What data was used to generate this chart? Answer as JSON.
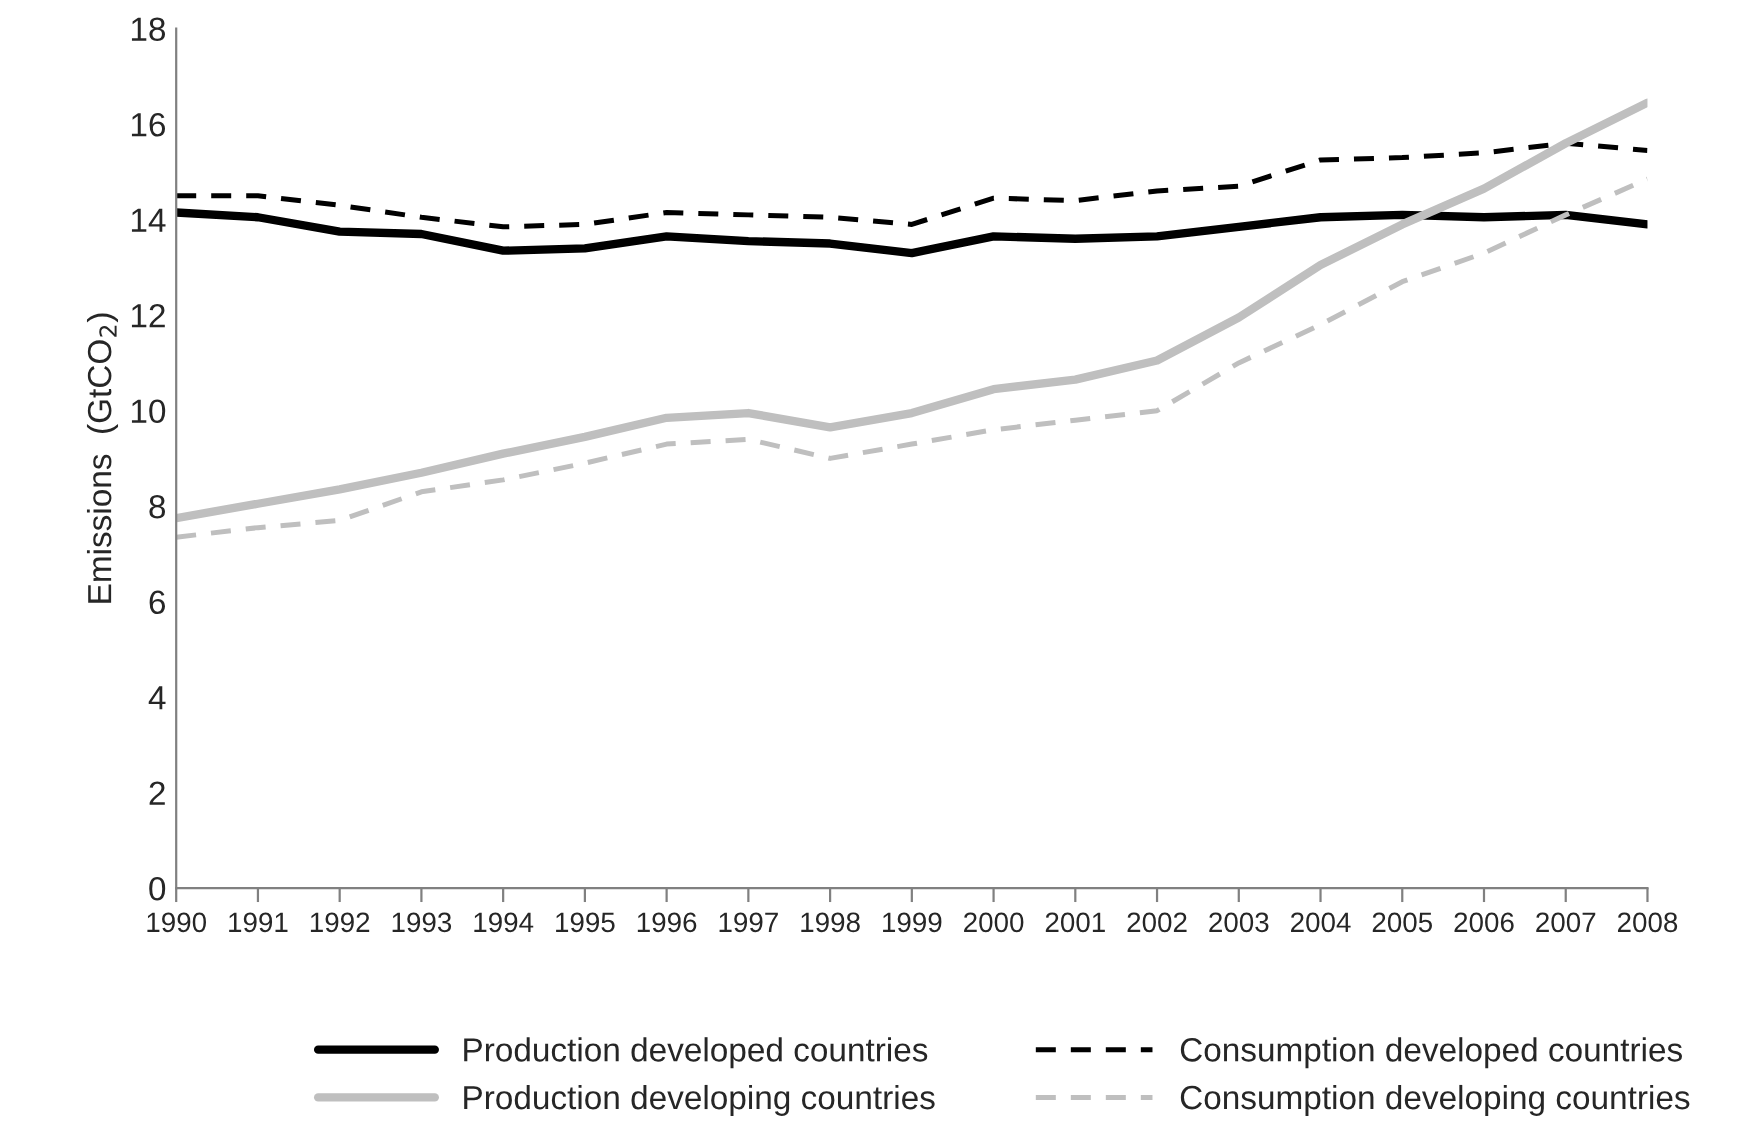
{
  "chart_data": {
    "type": "line",
    "ylabel": "Emissions  (GtCO$_{2}$)",
    "categories": [
      "1990",
      "1991",
      "1992",
      "1993",
      "1994",
      "1995",
      "1996",
      "1997",
      "1998",
      "1999",
      "2000",
      "2001",
      "2002",
      "2003",
      "2004",
      "2005",
      "2006",
      "2007",
      "2008"
    ],
    "series": [
      {
        "name": "Production developed countries",
        "color": "#000000",
        "line_style": "solid",
        "values": [
          14.15,
          14.05,
          13.75,
          13.7,
          13.35,
          13.4,
          13.65,
          13.55,
          13.5,
          13.3,
          13.65,
          13.6,
          13.65,
          13.85,
          14.05,
          14.1,
          14.05,
          14.1,
          13.9
        ]
      },
      {
        "name": "Consumption developed countries",
        "color": "#000000",
        "line_style": "dashed",
        "values": [
          14.5,
          14.5,
          14.3,
          14.05,
          13.85,
          13.9,
          14.15,
          14.1,
          14.05,
          13.9,
          14.45,
          14.4,
          14.6,
          14.7,
          15.25,
          15.3,
          15.4,
          15.6,
          15.45
        ]
      },
      {
        "name": "Production developing countries",
        "color": "#bfbfbf",
        "line_style": "solid",
        "values": [
          7.75,
          8.05,
          8.35,
          8.7,
          9.1,
          9.45,
          9.85,
          9.95,
          9.65,
          9.95,
          10.45,
          10.65,
          11.05,
          11.95,
          13.05,
          13.9,
          14.65,
          15.6,
          16.45
        ]
      },
      {
        "name": "Consumption developing countries",
        "color": "#bfbfbf",
        "line_style": "dashed",
        "values": [
          7.35,
          7.55,
          7.7,
          8.3,
          8.55,
          8.9,
          9.3,
          9.4,
          9.0,
          9.3,
          9.6,
          9.8,
          10.0,
          11.0,
          11.8,
          12.7,
          13.3,
          14.1,
          14.85
        ]
      }
    ],
    "ylim": [
      0,
      18
    ],
    "yticks": [
      0,
      2,
      4,
      6,
      8,
      10,
      12,
      14,
      16,
      18
    ],
    "legend": "bottom",
    "grid": false,
    "marker": "none"
  }
}
